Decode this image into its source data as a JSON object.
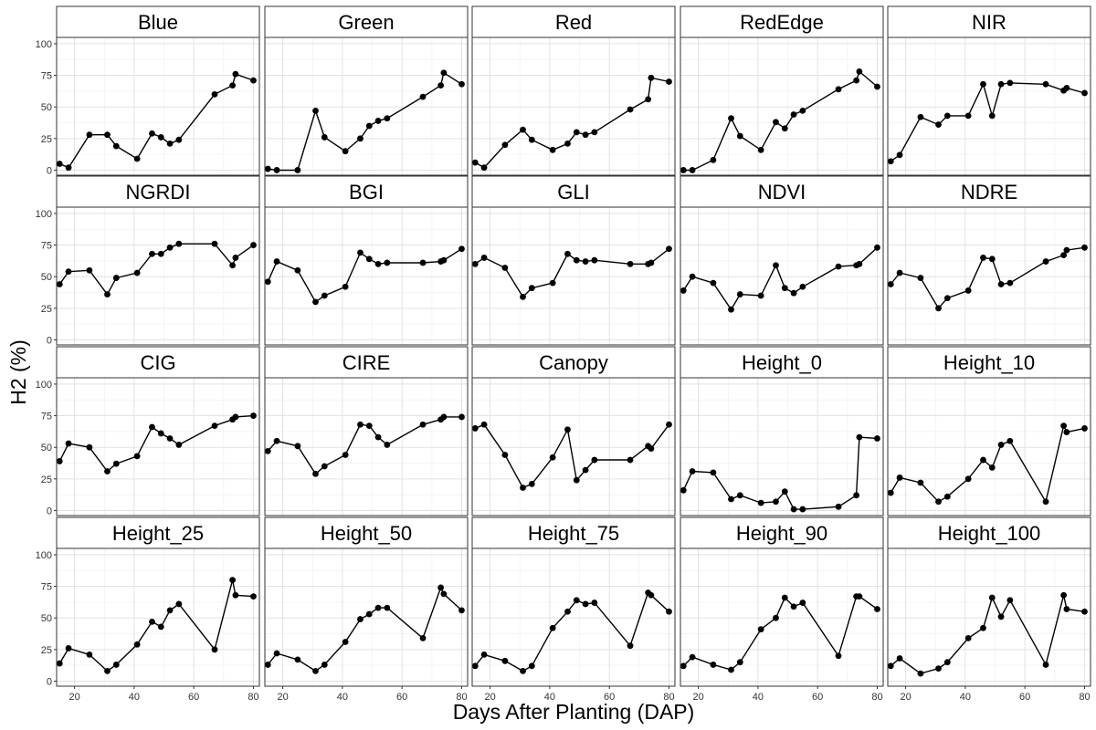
{
  "chart_data": {
    "type": "line",
    "layout": "facet-grid 4x5",
    "xlabel": "Days After Planting (DAP)",
    "ylabel": "H2 (%)",
    "x_ticks": [
      20,
      40,
      60,
      80
    ],
    "y_ticks": [
      0,
      25,
      50,
      75,
      100
    ],
    "xlim": [
      14,
      82
    ],
    "ylim": [
      -4,
      105
    ],
    "grid": true,
    "legend": "none",
    "x": [
      15,
      18,
      25,
      31,
      34,
      41,
      46,
      49,
      52,
      55,
      67,
      73,
      74,
      80
    ],
    "panels": [
      {
        "title": "Blue",
        "values": [
          5,
          2,
          28,
          28,
          19,
          9,
          29,
          26,
          21,
          24,
          60,
          67,
          76,
          71
        ]
      },
      {
        "title": "Green",
        "values": [
          1,
          0,
          0,
          47,
          26,
          15,
          25,
          35,
          39,
          41,
          58,
          67,
          77,
          68
        ]
      },
      {
        "title": "Red",
        "values": [
          6,
          2,
          20,
          32,
          24,
          16,
          21,
          30,
          28,
          30,
          48,
          56,
          73,
          70
        ]
      },
      {
        "title": "RedEdge",
        "values": [
          0,
          0,
          8,
          41,
          27,
          16,
          38,
          33,
          44,
          47,
          64,
          71,
          78,
          66
        ]
      },
      {
        "title": "NIR",
        "values": [
          7,
          12,
          42,
          36,
          43,
          43,
          68,
          43,
          68,
          69,
          68,
          63,
          65,
          61
        ]
      },
      {
        "title": "NGRDI",
        "values": [
          44,
          54,
          55,
          36,
          49,
          53,
          68,
          68,
          73,
          76,
          76,
          59,
          65,
          75
        ]
      },
      {
        "title": "BGI",
        "values": [
          46,
          62,
          55,
          30,
          35,
          42,
          69,
          64,
          60,
          61,
          61,
          62,
          63,
          72
        ]
      },
      {
        "title": "GLI",
        "values": [
          60,
          65,
          57,
          34,
          41,
          45,
          68,
          63,
          62,
          63,
          60,
          60,
          61,
          72
        ]
      },
      {
        "title": "NDVI",
        "values": [
          39,
          50,
          45,
          24,
          36,
          35,
          59,
          41,
          37,
          42,
          58,
          59,
          60,
          73
        ]
      },
      {
        "title": "NDRE",
        "values": [
          44,
          53,
          49,
          25,
          33,
          39,
          65,
          64,
          44,
          45,
          62,
          67,
          71,
          73
        ]
      },
      {
        "title": "CIG",
        "values": [
          39,
          53,
          50,
          31,
          37,
          43,
          66,
          61,
          57,
          52,
          67,
          72,
          74,
          75
        ]
      },
      {
        "title": "CIRE",
        "values": [
          47,
          55,
          51,
          29,
          35,
          44,
          68,
          67,
          58,
          52,
          68,
          72,
          74,
          74
        ]
      },
      {
        "title": "Canopy",
        "values": [
          65,
          68,
          44,
          18,
          21,
          42,
          64,
          24,
          32,
          40,
          40,
          51,
          49,
          68
        ]
      },
      {
        "title": "Height_0",
        "values": [
          16,
          31,
          30,
          9,
          12,
          6,
          7,
          15,
          1,
          1,
          3,
          12,
          58,
          57
        ]
      },
      {
        "title": "Height_10",
        "values": [
          14,
          26,
          22,
          7,
          11,
          25,
          40,
          34,
          52,
          55,
          7,
          67,
          62,
          65
        ]
      },
      {
        "title": "Height_25",
        "values": [
          14,
          26,
          21,
          8,
          13,
          29,
          47,
          43,
          56,
          61,
          25,
          80,
          68,
          67
        ]
      },
      {
        "title": "Height_50",
        "values": [
          13,
          22,
          17,
          8,
          13,
          31,
          49,
          53,
          58,
          58,
          34,
          74,
          69,
          56
        ]
      },
      {
        "title": "Height_75",
        "values": [
          12,
          21,
          16,
          8,
          12,
          42,
          55,
          64,
          61,
          62,
          28,
          70,
          68,
          55
        ]
      },
      {
        "title": "Height_90",
        "values": [
          12,
          19,
          13,
          9,
          15,
          41,
          50,
          66,
          59,
          62,
          20,
          67,
          67,
          57
        ]
      },
      {
        "title": "Height_100",
        "values": [
          12,
          18,
          6,
          10,
          15,
          34,
          42,
          66,
          51,
          64,
          13,
          68,
          57,
          55
        ]
      }
    ]
  }
}
